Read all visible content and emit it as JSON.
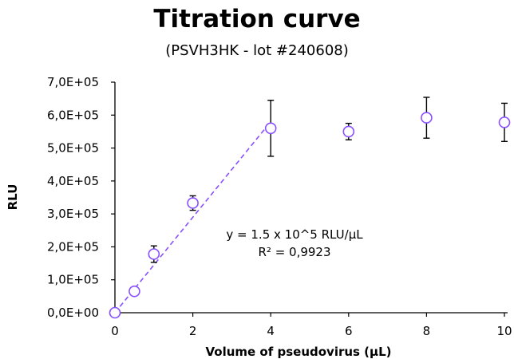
{
  "chart_data": {
    "type": "scatter",
    "title": "Titration curve",
    "subtitle": "(PSVH3HK - lot #240608)",
    "xlabel": "Volume of pseudovirus (µL)",
    "ylabel": "RLU",
    "xlim": [
      0,
      10
    ],
    "ylim": [
      0,
      700000
    ],
    "x_ticks": [
      0,
      2,
      4,
      6,
      8,
      10
    ],
    "x_tick_labels": [
      "0",
      "2",
      "4",
      "6",
      "8",
      "10"
    ],
    "y_ticks": [
      0,
      100000,
      200000,
      300000,
      400000,
      500000,
      600000,
      700000
    ],
    "y_tick_labels": [
      "0,0E+00",
      "1,0E+05",
      "2,0E+05",
      "3,0E+05",
      "4,0E+05",
      "5,0E+05",
      "6,0E+05",
      "7,0E+05"
    ],
    "grid": false,
    "series": [
      {
        "x": [
          0,
          0.5,
          1,
          2,
          4,
          6,
          8,
          10
        ],
        "y": [
          0,
          65000,
          178000,
          333000,
          560000,
          550000,
          592000,
          578000
        ],
        "error": [
          0,
          0,
          25000,
          22000,
          85000,
          25000,
          62000,
          58000
        ],
        "marker": "open-circle",
        "color": "#8a4fff"
      }
    ],
    "fit": {
      "x": [
        0,
        4
      ],
      "y": [
        0,
        580000
      ],
      "style": "dashed",
      "color": "#8a4fff"
    },
    "annotations": [
      "y = 1.5 x 10^5 RLU/µL",
      "R² = 0,9923"
    ],
    "colors": {
      "marker": "#8a4fff",
      "axis": "#000000",
      "errorbar": "#000000"
    }
  }
}
